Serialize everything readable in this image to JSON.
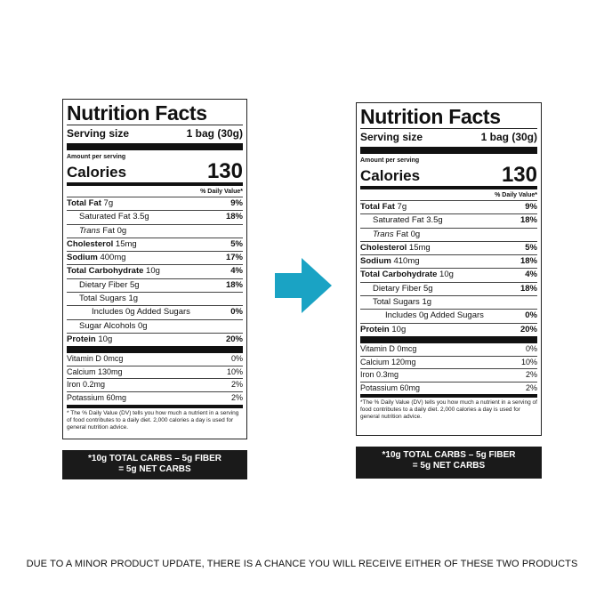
{
  "labels": [
    {
      "title": "Nutrition Facts",
      "serving_label": "Serving size",
      "serving_value": "1 bag (30g)",
      "amount_per_serving": "Amount per serving",
      "calories_label": "Calories",
      "calories_value": "130",
      "dv_header": "% Daily Value*",
      "nutrients": [
        {
          "bold": "Total Fat",
          "rest": " 7g",
          "pct": "9%",
          "indent": 0
        },
        {
          "bold": "",
          "rest": "Saturated Fat 3.5g",
          "pct": "18%",
          "indent": 1
        },
        {
          "bold": "",
          "italic": "Trans",
          "rest": " Fat 0g",
          "pct": "",
          "indent": 1
        },
        {
          "bold": "Cholesterol",
          "rest": " 15mg",
          "pct": "5%",
          "indent": 0
        },
        {
          "bold": "Sodium",
          "rest": " 400mg",
          "pct": "17%",
          "indent": 0
        },
        {
          "bold": "Total Carbohydrate",
          "rest": " 10g",
          "pct": "4%",
          "indent": 0
        },
        {
          "bold": "",
          "rest": "Dietary Fiber 5g",
          "pct": "18%",
          "indent": 1
        },
        {
          "bold": "",
          "rest": "Total Sugars 1g",
          "pct": "",
          "indent": 1
        },
        {
          "bold": "",
          "rest": "Includes 0g Added Sugars",
          "pct": "0%",
          "indent": 2
        },
        {
          "bold": "",
          "rest": "Sugar Alcohols 0g",
          "pct": "",
          "indent": 1
        },
        {
          "bold": "Protein",
          "rest": " 10g",
          "pct": "20%",
          "indent": 0
        }
      ],
      "vitamins": [
        {
          "name": "Vitamin D 0mcg",
          "pct": "0%"
        },
        {
          "name": "Calcium 130mg",
          "pct": "10%"
        },
        {
          "name": "Iron 0.2mg",
          "pct": "2%"
        },
        {
          "name": "Potassium 60mg",
          "pct": "2%"
        }
      ],
      "footnote": "* The % Daily Value (DV) tells you how much a nutrient in a serving of food contributes to a daily diet. 2,000 calories a day is used for general nutrition advice.",
      "net_carbs_line1": "*10g TOTAL CARBS – 5g FIBER",
      "net_carbs_line2": "= 5g NET CARBS"
    },
    {
      "title": "Nutrition Facts",
      "serving_label": "Serving size",
      "serving_value": "1 bag (30g)",
      "amount_per_serving": "Amount per serving",
      "calories_label": "Calories",
      "calories_value": "130",
      "dv_header": "% Daily Value*",
      "nutrients": [
        {
          "bold": "Total Fat",
          "rest": " 7g",
          "pct": "9%",
          "indent": 0
        },
        {
          "bold": "",
          "rest": "Saturated Fat 3.5g",
          "pct": "18%",
          "indent": 1
        },
        {
          "bold": "",
          "italic": "Trans",
          "rest": " Fat 0g",
          "pct": "",
          "indent": 1
        },
        {
          "bold": "Cholesterol",
          "rest": " 15mg",
          "pct": "5%",
          "indent": 0
        },
        {
          "bold": "Sodium",
          "rest": " 410mg",
          "pct": "18%",
          "indent": 0
        },
        {
          "bold": "Total Carbohydrate",
          "rest": " 10g",
          "pct": "4%",
          "indent": 0
        },
        {
          "bold": "",
          "rest": "Dietary Fiber 5g",
          "pct": "18%",
          "indent": 1
        },
        {
          "bold": "",
          "rest": "Total Sugars 1g",
          "pct": "",
          "indent": 1
        },
        {
          "bold": "",
          "rest": "Includes 0g Added Sugars",
          "pct": "0%",
          "indent": 2
        },
        {
          "bold": "Protein",
          "rest": " 10g",
          "pct": "20%",
          "indent": 0
        }
      ],
      "vitamins": [
        {
          "name": "Vitamin D 0mcg",
          "pct": "0%"
        },
        {
          "name": "Calcium 120mg",
          "pct": "10%"
        },
        {
          "name": "Iron 0.3mg",
          "pct": "2%"
        },
        {
          "name": "Potassium 60mg",
          "pct": "2%"
        }
      ],
      "footnote": "*The % Daily Value (DV) tells you how much a nutrient in a serving of food contributes to a daily diet. 2,000 calories a day is used for general nutrition advice.",
      "net_carbs_line1": "*10g TOTAL CARBS – 5g FIBER",
      "net_carbs_line2": "= 5g NET CARBS"
    }
  ],
  "arrow": {
    "icon": "arrow-right-icon",
    "color": "#1aa3c4"
  },
  "notice": "DUE TO A MINOR PRODUCT UPDATE, THERE IS A CHANCE YOU WILL RECEIVE EITHER OF THESE TWO PRODUCTS"
}
